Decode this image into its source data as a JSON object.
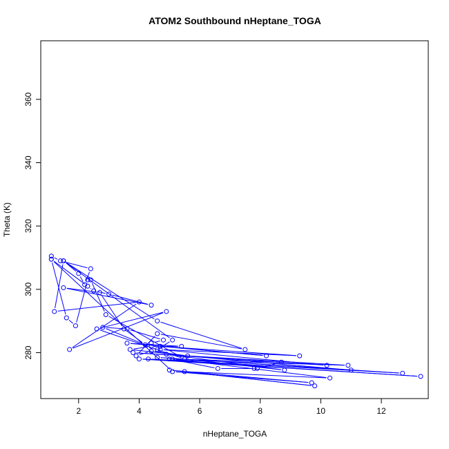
{
  "chart_data": {
    "type": "line",
    "title": "ATOM2 Southbound nHeptane_TOGA",
    "xlabel": "nHeptane_TOGA",
    "ylabel": "Theta (K)",
    "xlim": [
      0.75,
      13.55
    ],
    "ylim": [
      265.5,
      378.5
    ],
    "x_ticks": [
      2,
      4,
      6,
      8,
      10,
      12
    ],
    "y_ticks": [
      280,
      300,
      320,
      340,
      360
    ],
    "grid": false,
    "legend": "none",
    "colors": {
      "series": "#0000ff",
      "axes": "#000000"
    },
    "markers": "open-circle",
    "series": [
      {
        "x": [
          1.1,
          1.4,
          2.4,
          2.2,
          2.0,
          1.5,
          1.2,
          4.0,
          1.7,
          4.9,
          2.6,
          5.5,
          2.9,
          2.4,
          2.3,
          1.9,
          1.6,
          1.1,
          2.3,
          2.5,
          3.0,
          4.4,
          1.5,
          2.7,
          3.5,
          4.2,
          2.8,
          3.6,
          4.8,
          4.4,
          4.6,
          5.1,
          1.5,
          4.6,
          7.5,
          4.6,
          3.9,
          4.4,
          5.6,
          3.7,
          4.4,
          5.4,
          3.6,
          8.2,
          4.7,
          9.3,
          4.7,
          10.2,
          3.8,
          10.9,
          4.0,
          13.3,
          4.3,
          12.7,
          4.6,
          11.0,
          4.9,
          8.8,
          5.5,
          5.0,
          6.6,
          7.8,
          7.9,
          8.7,
          5.1,
          10.3,
          5.5,
          9.8,
          5.0,
          9.7,
          5.1,
          1.1
        ],
        "y": [
          310.5,
          309.0,
          306.5,
          301.5,
          305.0,
          309.0,
          293.0,
          296.0,
          281.0,
          293.0,
          287.5,
          278.0,
          292.0,
          303.0,
          303.0,
          288.5,
          291.0,
          309.5,
          301.0,
          299.5,
          298.5,
          295.0,
          300.5,
          299.0,
          287.5,
          282.5,
          288.0,
          287.5,
          284.0,
          283.0,
          281.0,
          284.0,
          309.0,
          290.0,
          281.0,
          286.0,
          279.0,
          280.5,
          279.0,
          281.0,
          282.0,
          282.0,
          283.0,
          279.0,
          282.0,
          279.0,
          281.0,
          276.0,
          280.0,
          276.0,
          278.0,
          272.5,
          278.0,
          273.5,
          278.5,
          274.5,
          279.5,
          274.5,
          278.0,
          278.0,
          275.0,
          275.0,
          275.0,
          277.0,
          278.0,
          272.0,
          274.0,
          269.5,
          274.5,
          270.5,
          274.0,
          309.5
        ]
      }
    ]
  }
}
